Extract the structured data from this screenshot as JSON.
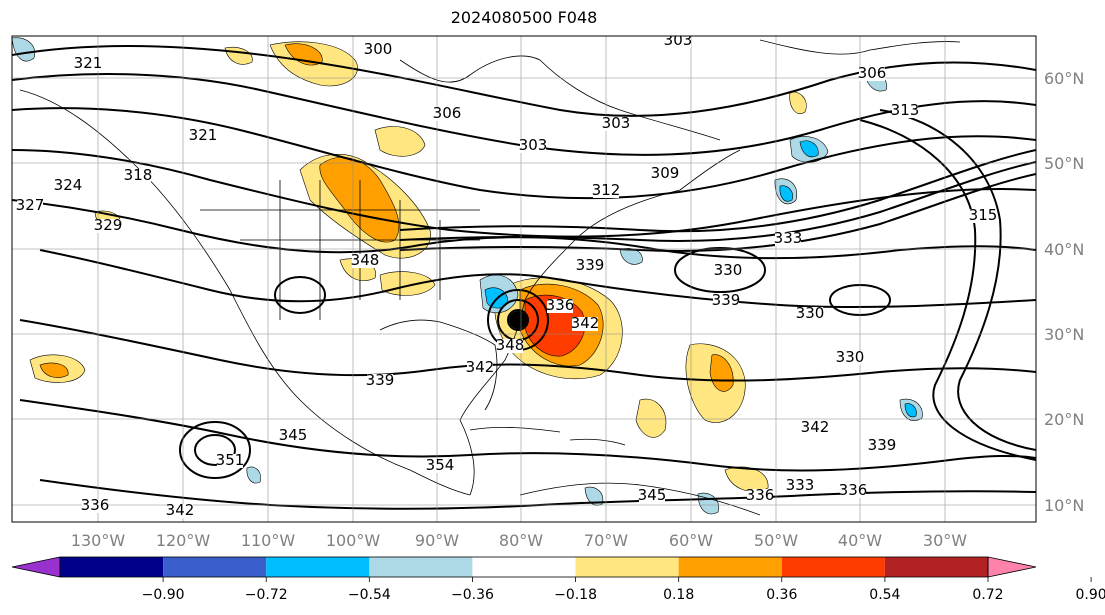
{
  "title": "2024080500 F048",
  "longitude_labels": [
    "130°W",
    "120°W",
    "110°W",
    "100°W",
    "90°W",
    "80°W",
    "70°W",
    "60°W",
    "50°W",
    "40°W",
    "30°W"
  ],
  "latitude_labels": [
    "60°N",
    "50°N",
    "40°N",
    "30°N",
    "20°N",
    "10°N"
  ],
  "colorbar": {
    "ticks": [
      "−0.90",
      "−0.72",
      "−0.54",
      "−0.36",
      "−0.18",
      "0.18",
      "0.36",
      "0.54",
      "0.72",
      "0.90"
    ],
    "colors": [
      "#9932cc",
      "#00008b",
      "#3a5fcd",
      "#00bfff",
      "#add8e6",
      "#ffffff",
      "#ffe680",
      "#ff9f00",
      "#ff3c00",
      "#b22222",
      "#ff82ab"
    ]
  },
  "contour_labels": [
    "300",
    "303",
    "303",
    "303",
    "306",
    "306",
    "309",
    "312",
    "313",
    "315",
    "318",
    "321",
    "321",
    "324",
    "327",
    "329",
    "330",
    "330",
    "330",
    "333",
    "333",
    "336",
    "336",
    "336",
    "336",
    "339",
    "339",
    "339",
    "339",
    "342",
    "342",
    "342",
    "342",
    "345",
    "345",
    "348",
    "348",
    "351",
    "354"
  ],
  "shading_colors": {
    "blue": "#00bfff",
    "lightblue": "#add8e6",
    "yellow": "#ffe680",
    "orange": "#ff9f00",
    "red": "#ff3c00"
  }
}
